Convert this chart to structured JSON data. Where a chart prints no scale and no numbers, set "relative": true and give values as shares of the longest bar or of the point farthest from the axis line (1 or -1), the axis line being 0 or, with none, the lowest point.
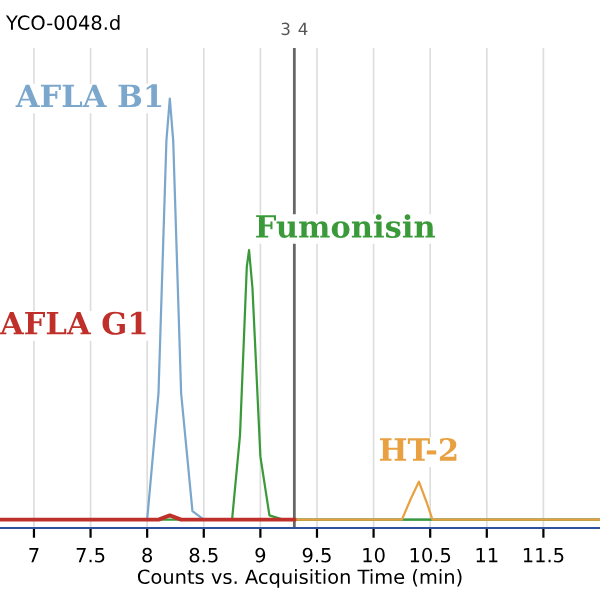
{
  "chart_data": {
    "type": "line",
    "title": "YCO-0048.d",
    "xlabel": "Counts vs. Acquisition Time (min)",
    "relative": true,
    "xlim": [
      6.7,
      12.0
    ],
    "xticks": [
      7,
      7.5,
      8,
      8.5,
      9,
      9.5,
      10,
      10.5,
      11,
      11.5
    ],
    "grid": "x",
    "marker": "none",
    "line_style": "solid",
    "series": [
      {
        "name": "AFLA B1",
        "color": "#7ba7cc",
        "x": [
          6.7,
          8.0,
          8.1,
          8.17,
          8.2,
          8.23,
          8.3,
          8.4,
          8.5,
          12.0
        ],
        "values": [
          0,
          0,
          0.3,
          0.9,
          1,
          0.9,
          0.3,
          0.02,
          0,
          0
        ]
      },
      {
        "name": "AFLA G1",
        "color": "#c0302a",
        "x": [
          6.7,
          8.1,
          8.2,
          8.3,
          9.3
        ],
        "values": [
          0,
          0,
          0.01,
          0,
          0
        ]
      },
      {
        "name": "Fumonisin",
        "color": "#3a9a3a",
        "x": [
          6.7,
          8.75,
          8.82,
          8.88,
          8.9,
          8.93,
          9.0,
          9.08,
          9.2,
          12.0
        ],
        "values": [
          0,
          0,
          0.2,
          0.6,
          0.64,
          0.55,
          0.15,
          0.01,
          0,
          0
        ]
      },
      {
        "name": "HT-2",
        "color": "#e8a040",
        "x": [
          9.3,
          10.25,
          10.33,
          10.4,
          10.47,
          10.52,
          12.0
        ],
        "values": [
          0,
          0,
          0.05,
          0.09,
          0.04,
          0,
          0
        ]
      }
    ],
    "ref_lines": [
      {
        "axis": "x",
        "value": 9.3,
        "color": "#666666"
      }
    ],
    "annotations": [
      "3",
      "4"
    ]
  }
}
